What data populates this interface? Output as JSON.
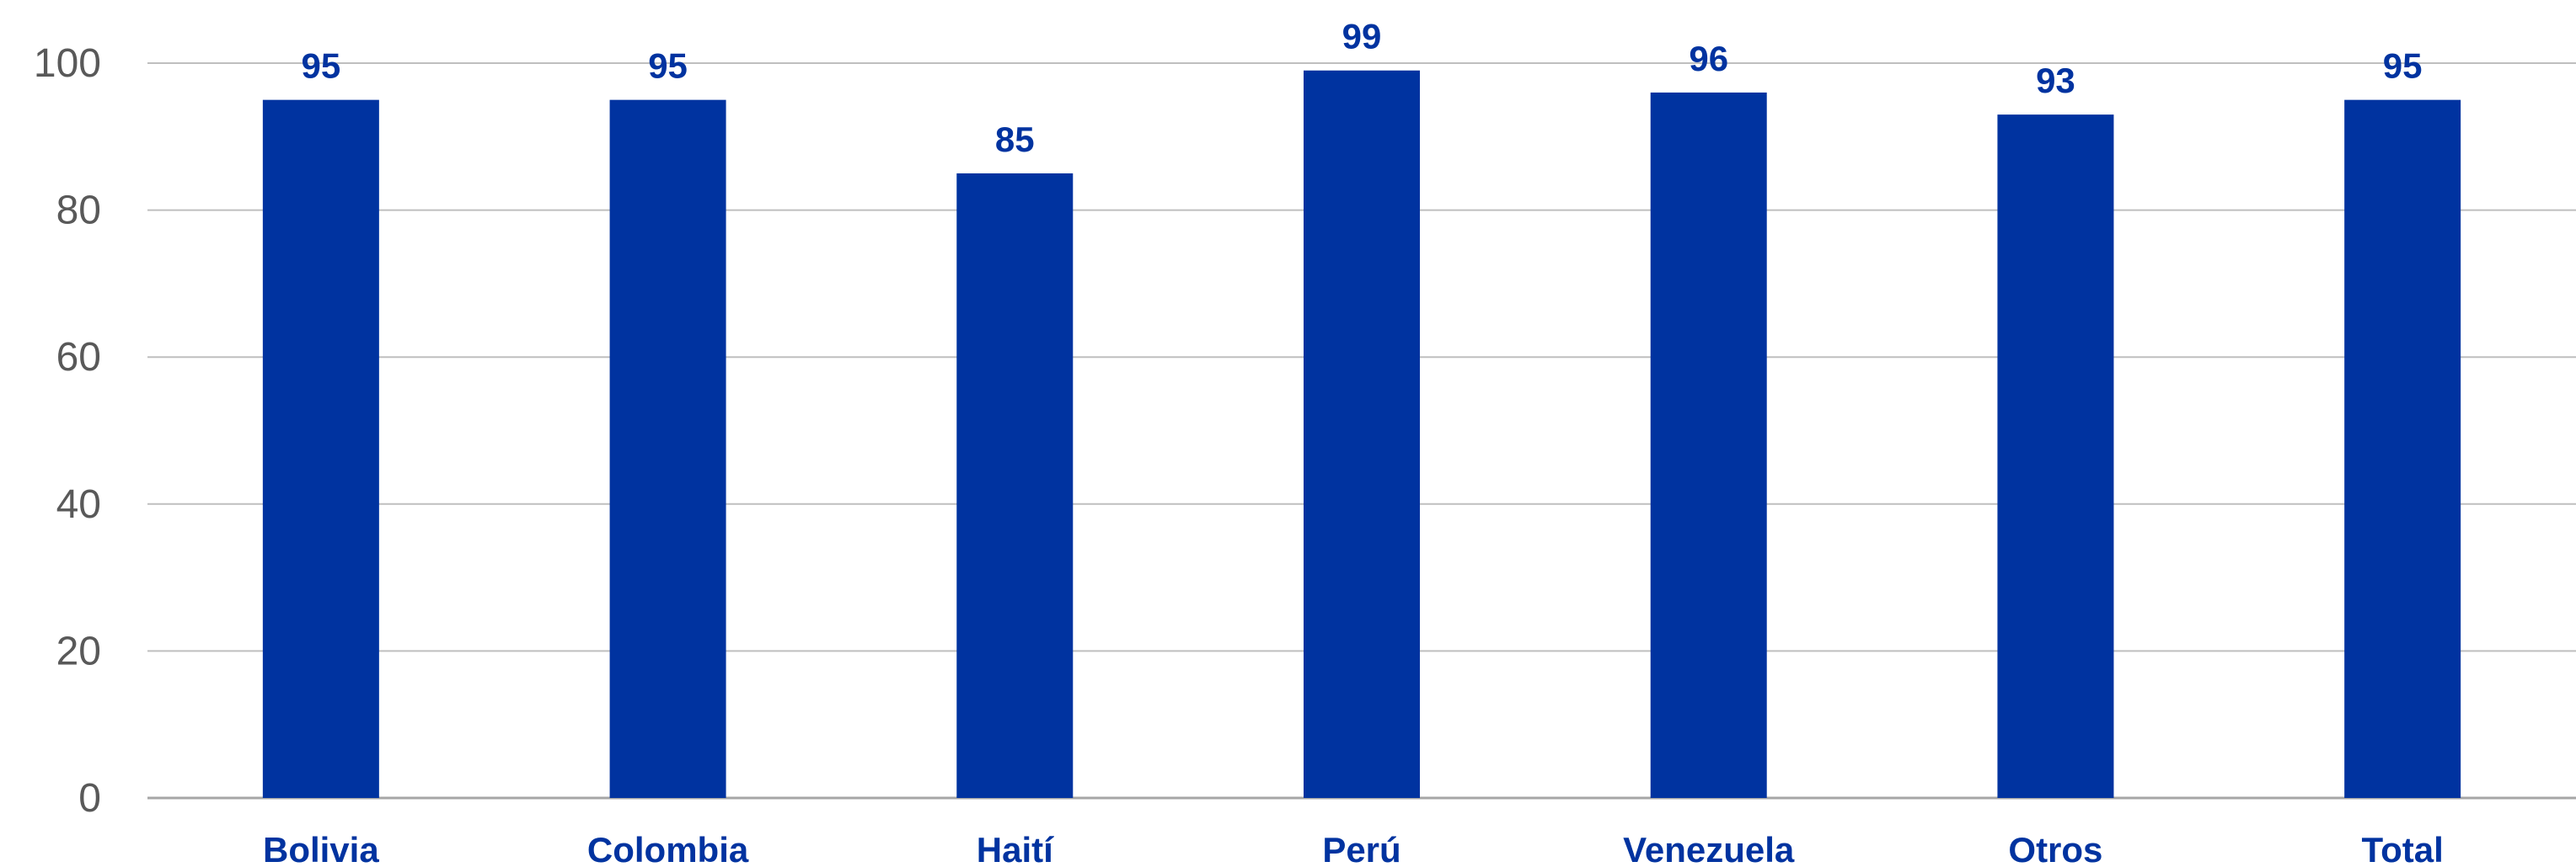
{
  "chart_data": {
    "type": "bar",
    "categories": [
      "Bolivia",
      "Colombia",
      "Haití",
      "Perú",
      "Venezuela",
      "Otros",
      "Total"
    ],
    "values": [
      95,
      95,
      85,
      99,
      96,
      93,
      95
    ],
    "data_labels": [
      "95",
      "95",
      "85",
      "99",
      "96",
      "93",
      "95"
    ],
    "y_ticks": [
      "0",
      "20",
      "40",
      "60",
      "80",
      "100"
    ],
    "ylim": [
      0,
      100
    ],
    "title": "",
    "xlabel": "",
    "ylabel": "",
    "grid": true,
    "legend": "none",
    "colors": {
      "bar": "#0033A0",
      "label": "#0033A0",
      "grid": "#BFBFBF",
      "axis_text": "#595959"
    }
  }
}
